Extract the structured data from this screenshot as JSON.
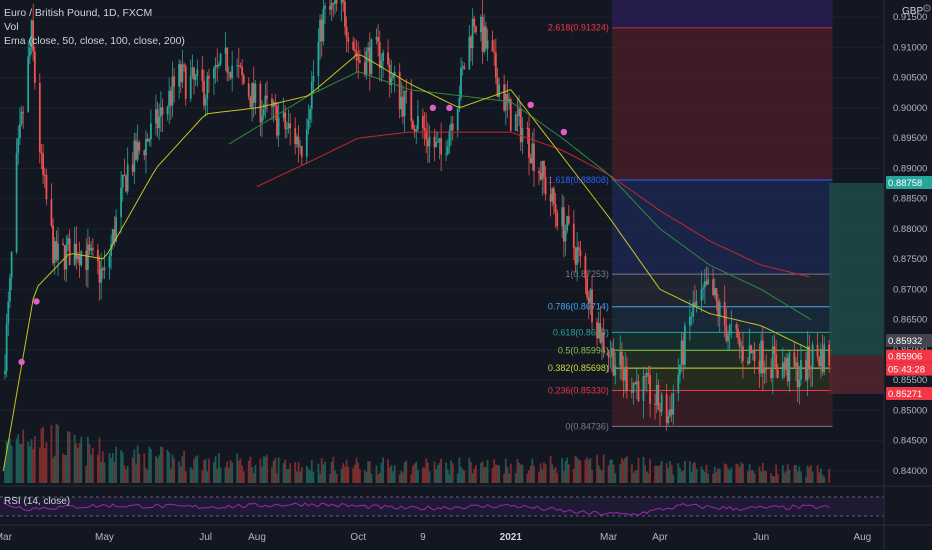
{
  "legend": {
    "symbol": "Euro / British Pound, 1D, FXCM",
    "vol": "Vol",
    "ema": "Ema (close, 50, close, 100, close, 200)"
  },
  "rsi": {
    "label": "RSI (14, close)"
  },
  "price_axis": {
    "currency": "GBP",
    "ticks": [
      "0.91500",
      "0.91000",
      "0.90500",
      "0.90000",
      "0.89500",
      "0.89000",
      "0.88500",
      "0.88000",
      "0.87500",
      "0.87000",
      "0.86500",
      "0.86000",
      "0.85500",
      "0.85000",
      "0.84500",
      "0.84000"
    ],
    "badges": [
      {
        "text": "0.88758",
        "color": "#26a69a",
        "value": 0.88758
      },
      {
        "text": "0.85932",
        "color": "#434651",
        "value": 0.85932
      },
      {
        "text": "0.85906",
        "color": "#f23645",
        "value": 0.85906
      },
      {
        "text": "05:43:28",
        "color": "#f23645",
        "value": 0.85906
      },
      {
        "text": "0.85271",
        "color": "#f23645",
        "value": 0.85271
      }
    ]
  },
  "time_axis": {
    "ticks": [
      "Mar",
      "May",
      "Jul",
      "Aug",
      "Oct",
      "9",
      "2021",
      "Mar",
      "Apr",
      "Jun",
      "Aug"
    ]
  },
  "fib_levels": [
    {
      "label": "2.618(0.91324)",
      "value": 0.91324,
      "color": "#f23645"
    },
    {
      "label": "1.618(0.88808)",
      "value": 0.88808,
      "color": "#2962ff"
    },
    {
      "label": "1(0.87253)",
      "value": 0.87253,
      "color": "#787b86"
    },
    {
      "label": "0.786(0.86714)",
      "value": 0.86714,
      "color": "#42a5f5"
    },
    {
      "label": "0.618(0.8629)",
      "value": 0.8629,
      "color": "#26a69a"
    },
    {
      "label": "0.5(0.85994)",
      "value": 0.85994,
      "color": "#8bc34a"
    },
    {
      "label": "0.382(0.85698)",
      "value": 0.85698,
      "color": "#cddc39"
    },
    {
      "label": "0.236(0.85330)",
      "value": 0.8533,
      "color": "#f23645"
    },
    {
      "label": "0(0.84736)",
      "value": 0.84736,
      "color": "#787b86"
    }
  ],
  "colors": {
    "up": "#26a69a",
    "down": "#ef5350",
    "ema50": "#c9c41a",
    "ema100": "#2e8b3c",
    "ema200": "#c62828",
    "rsi": "#9c27b0"
  },
  "chart_data": {
    "type": "candlestick",
    "title": "Euro / British Pound, 1D, FXCM",
    "xlabel": "",
    "ylabel": "",
    "ylim": [
      0.8385,
      0.9165
    ],
    "close_anchors": [
      [
        "2020-03-01",
        0.856
      ],
      [
        "2020-03-05",
        0.87
      ],
      [
        "2020-03-09",
        0.89
      ],
      [
        "2020-03-18",
        0.912
      ],
      [
        "2020-03-24",
        0.89
      ],
      [
        "2020-04-01",
        0.875
      ],
      [
        "2020-04-15",
        0.877
      ],
      [
        "2020-05-01",
        0.872
      ],
      [
        "2020-05-15",
        0.89
      ],
      [
        "2020-06-01",
        0.897
      ],
      [
        "2020-06-15",
        0.905
      ],
      [
        "2020-07-01",
        0.903
      ],
      [
        "2020-07-15",
        0.908
      ],
      [
        "2020-07-31",
        0.901
      ],
      [
        "2020-08-10",
        0.899
      ],
      [
        "2020-08-28",
        0.894
      ],
      [
        "2020-09-10",
        0.915
      ],
      [
        "2020-09-21",
        0.917
      ],
      [
        "2020-10-01",
        0.908
      ],
      [
        "2020-10-15",
        0.909
      ],
      [
        "2020-10-26",
        0.902
      ],
      [
        "2020-11-10",
        0.896
      ],
      [
        "2020-11-20",
        0.892
      ],
      [
        "2020-12-01",
        0.903
      ],
      [
        "2020-12-10",
        0.915
      ],
      [
        "2020-12-20",
        0.908
      ],
      [
        "2020-12-31",
        0.899
      ],
      [
        "2021-01-10",
        0.896
      ],
      [
        "2021-01-25",
        0.885
      ],
      [
        "2021-02-10",
        0.876
      ],
      [
        "2021-02-25",
        0.862
      ],
      [
        "2021-03-10",
        0.856
      ],
      [
        "2021-03-25",
        0.853
      ],
      [
        "2021-04-06",
        0.849
      ],
      [
        "2021-04-20",
        0.866
      ],
      [
        "2021-05-01",
        0.87
      ],
      [
        "2021-05-10",
        0.864
      ],
      [
        "2021-05-20",
        0.86
      ],
      [
        "2021-06-01",
        0.859
      ],
      [
        "2021-06-15",
        0.857
      ],
      [
        "2021-06-25",
        0.856
      ],
      [
        "2021-07-02",
        0.859
      ]
    ],
    "ema50_anchors": [
      [
        "2020-03-01",
        0.84
      ],
      [
        "2020-03-20",
        0.87
      ],
      [
        "2020-04-10",
        0.876
      ],
      [
        "2020-05-01",
        0.875
      ],
      [
        "2020-06-01",
        0.89
      ],
      [
        "2020-07-01",
        0.899
      ],
      [
        "2020-08-01",
        0.9
      ],
      [
        "2020-09-01",
        0.902
      ],
      [
        "2020-10-01",
        0.909
      ],
      [
        "2020-11-01",
        0.904
      ],
      [
        "2020-12-01",
        0.9
      ],
      [
        "2021-01-01",
        0.903
      ],
      [
        "2021-02-01",
        0.892
      ],
      [
        "2021-03-01",
        0.882
      ],
      [
        "2021-04-01",
        0.87
      ],
      [
        "2021-05-01",
        0.866
      ],
      [
        "2021-06-01",
        0.864
      ],
      [
        "2021-07-01",
        0.86
      ]
    ],
    "ema100_anchors": [
      [
        "2020-07-15",
        0.894
      ],
      [
        "2020-09-01",
        0.902
      ],
      [
        "2020-10-01",
        0.906
      ],
      [
        "2020-11-01",
        0.903
      ],
      [
        "2021-01-01",
        0.901
      ],
      [
        "2021-02-01",
        0.895
      ],
      [
        "2021-03-01",
        0.889
      ],
      [
        "2021-04-01",
        0.88
      ],
      [
        "2021-05-01",
        0.874
      ],
      [
        "2021-06-01",
        0.87
      ],
      [
        "2021-07-01",
        0.865
      ]
    ],
    "ema200_anchors": [
      [
        "2020-08-01",
        0.887
      ],
      [
        "2020-09-01",
        0.891
      ],
      [
        "2020-10-01",
        0.895
      ],
      [
        "2020-11-01",
        0.896
      ],
      [
        "2021-01-01",
        0.896
      ],
      [
        "2021-02-01",
        0.893
      ],
      [
        "2021-03-01",
        0.889
      ],
      [
        "2021-04-01",
        0.883
      ],
      [
        "2021-05-01",
        0.878
      ],
      [
        "2021-06-01",
        0.874
      ],
      [
        "2021-07-01",
        0.872
      ]
    ],
    "ema_crosses": [
      [
        "2020-03-12",
        0.858
      ],
      [
        "2020-03-21",
        0.868
      ],
      [
        "2020-11-15",
        0.9
      ],
      [
        "2020-11-25",
        0.9
      ],
      [
        "2021-01-13",
        0.9005
      ],
      [
        "2021-02-02",
        0.896
      ]
    ],
    "volume_anchors": [
      [
        "2020-03-01",
        0.5
      ],
      [
        "2020-03-15",
        0.9
      ],
      [
        "2020-04-15",
        0.55
      ],
      [
        "2020-05-15",
        0.45
      ],
      [
        "2020-07-01",
        0.35
      ],
      [
        "2020-09-01",
        0.3
      ],
      [
        "2020-11-01",
        0.28
      ],
      [
        "2021-01-01",
        0.3
      ],
      [
        "2021-03-01",
        0.32
      ],
      [
        "2021-05-01",
        0.25
      ],
      [
        "2021-07-01",
        0.2
      ]
    ],
    "rsi_anchors": [
      [
        "2020-03-01",
        0.6
      ],
      [
        "2020-03-15",
        0.45
      ],
      [
        "2020-05-01",
        0.55
      ],
      [
        "2020-07-01",
        0.5
      ],
      [
        "2020-09-01",
        0.6
      ],
      [
        "2020-11-01",
        0.45
      ],
      [
        "2021-01-01",
        0.55
      ],
      [
        "2021-02-15",
        0.3
      ],
      [
        "2021-03-15",
        0.25
      ],
      [
        "2021-04-15",
        0.55
      ],
      [
        "2021-05-15",
        0.45
      ],
      [
        "2021-07-01",
        0.5
      ]
    ],
    "projection": {
      "from": [
        "2021-07-12",
        0.85906
      ],
      "target": 0.88758,
      "stop": 0.85271
    }
  }
}
